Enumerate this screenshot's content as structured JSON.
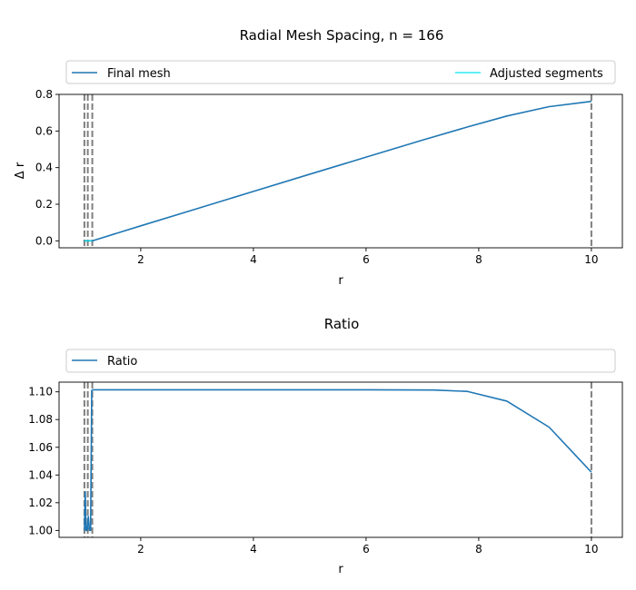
{
  "chart_data": [
    {
      "type": "line",
      "title": "Radial Mesh Spacing, n = 166",
      "xlabel": "r",
      "ylabel": "Δ r",
      "xlim": [
        0.55,
        10.55
      ],
      "ylim": [
        -0.038,
        0.8
      ],
      "xticks": [
        2,
        4,
        6,
        8,
        10
      ],
      "xtick_labels": [
        "2",
        "4",
        "6",
        "8",
        "10"
      ],
      "yticks": [
        0.0,
        0.2,
        0.4,
        0.6,
        0.8
      ],
      "ytick_labels": [
        "0.0",
        "0.2",
        "0.4",
        "0.6",
        "0.8"
      ],
      "grid": false,
      "legend_placement": "top, above axes",
      "vlines": [
        1.0,
        1.06,
        1.14,
        10.0
      ],
      "series": [
        {
          "name": "Final mesh",
          "color": "#1f77b4",
          "x": [
            1.0,
            1.03,
            1.07,
            1.14,
            2.0,
            3.0,
            4.0,
            5.0,
            6.0,
            7.0,
            7.8,
            8.5,
            9.25,
            10.0
          ],
          "y": [
            0.0,
            0.0,
            0.0,
            0.0,
            0.082,
            0.176,
            0.27,
            0.364,
            0.457,
            0.55,
            0.622,
            0.682,
            0.733,
            0.762
          ]
        },
        {
          "name": "Adjusted segments",
          "color": "#00e5ee",
          "x": [
            1.0,
            1.14
          ],
          "y": [
            0.0,
            0.0
          ]
        }
      ]
    },
    {
      "type": "line",
      "title": "Ratio",
      "xlabel": "r",
      "ylabel": "",
      "xlim": [
        0.55,
        10.55
      ],
      "ylim": [
        0.995,
        1.107
      ],
      "xticks": [
        2,
        4,
        6,
        8,
        10
      ],
      "xtick_labels": [
        "2",
        "4",
        "6",
        "8",
        "10"
      ],
      "yticks": [
        1.0,
        1.02,
        1.04,
        1.06,
        1.08,
        1.1
      ],
      "ytick_labels": [
        "1.00",
        "1.02",
        "1.04",
        "1.06",
        "1.08",
        "1.10"
      ],
      "grid": false,
      "legend_placement": "top, above axes",
      "vlines": [
        1.0,
        1.06,
        1.14,
        10.0
      ],
      "series": [
        {
          "name": "Ratio",
          "color": "#1f77b4",
          "x": [
            1.0,
            1.015,
            1.03,
            1.05,
            1.07,
            1.09,
            1.11,
            1.13,
            1.15,
            2.0,
            4.0,
            6.0,
            7.2,
            7.8,
            8.5,
            9.25,
            10.0
          ],
          "y": [
            1.0,
            1.028,
            1.0,
            1.0,
            1.01,
            1.0,
            1.0,
            1.101,
            1.1015,
            1.1015,
            1.1015,
            1.1015,
            1.1013,
            1.1003,
            1.0933,
            1.0745,
            1.042
          ]
        }
      ]
    }
  ]
}
